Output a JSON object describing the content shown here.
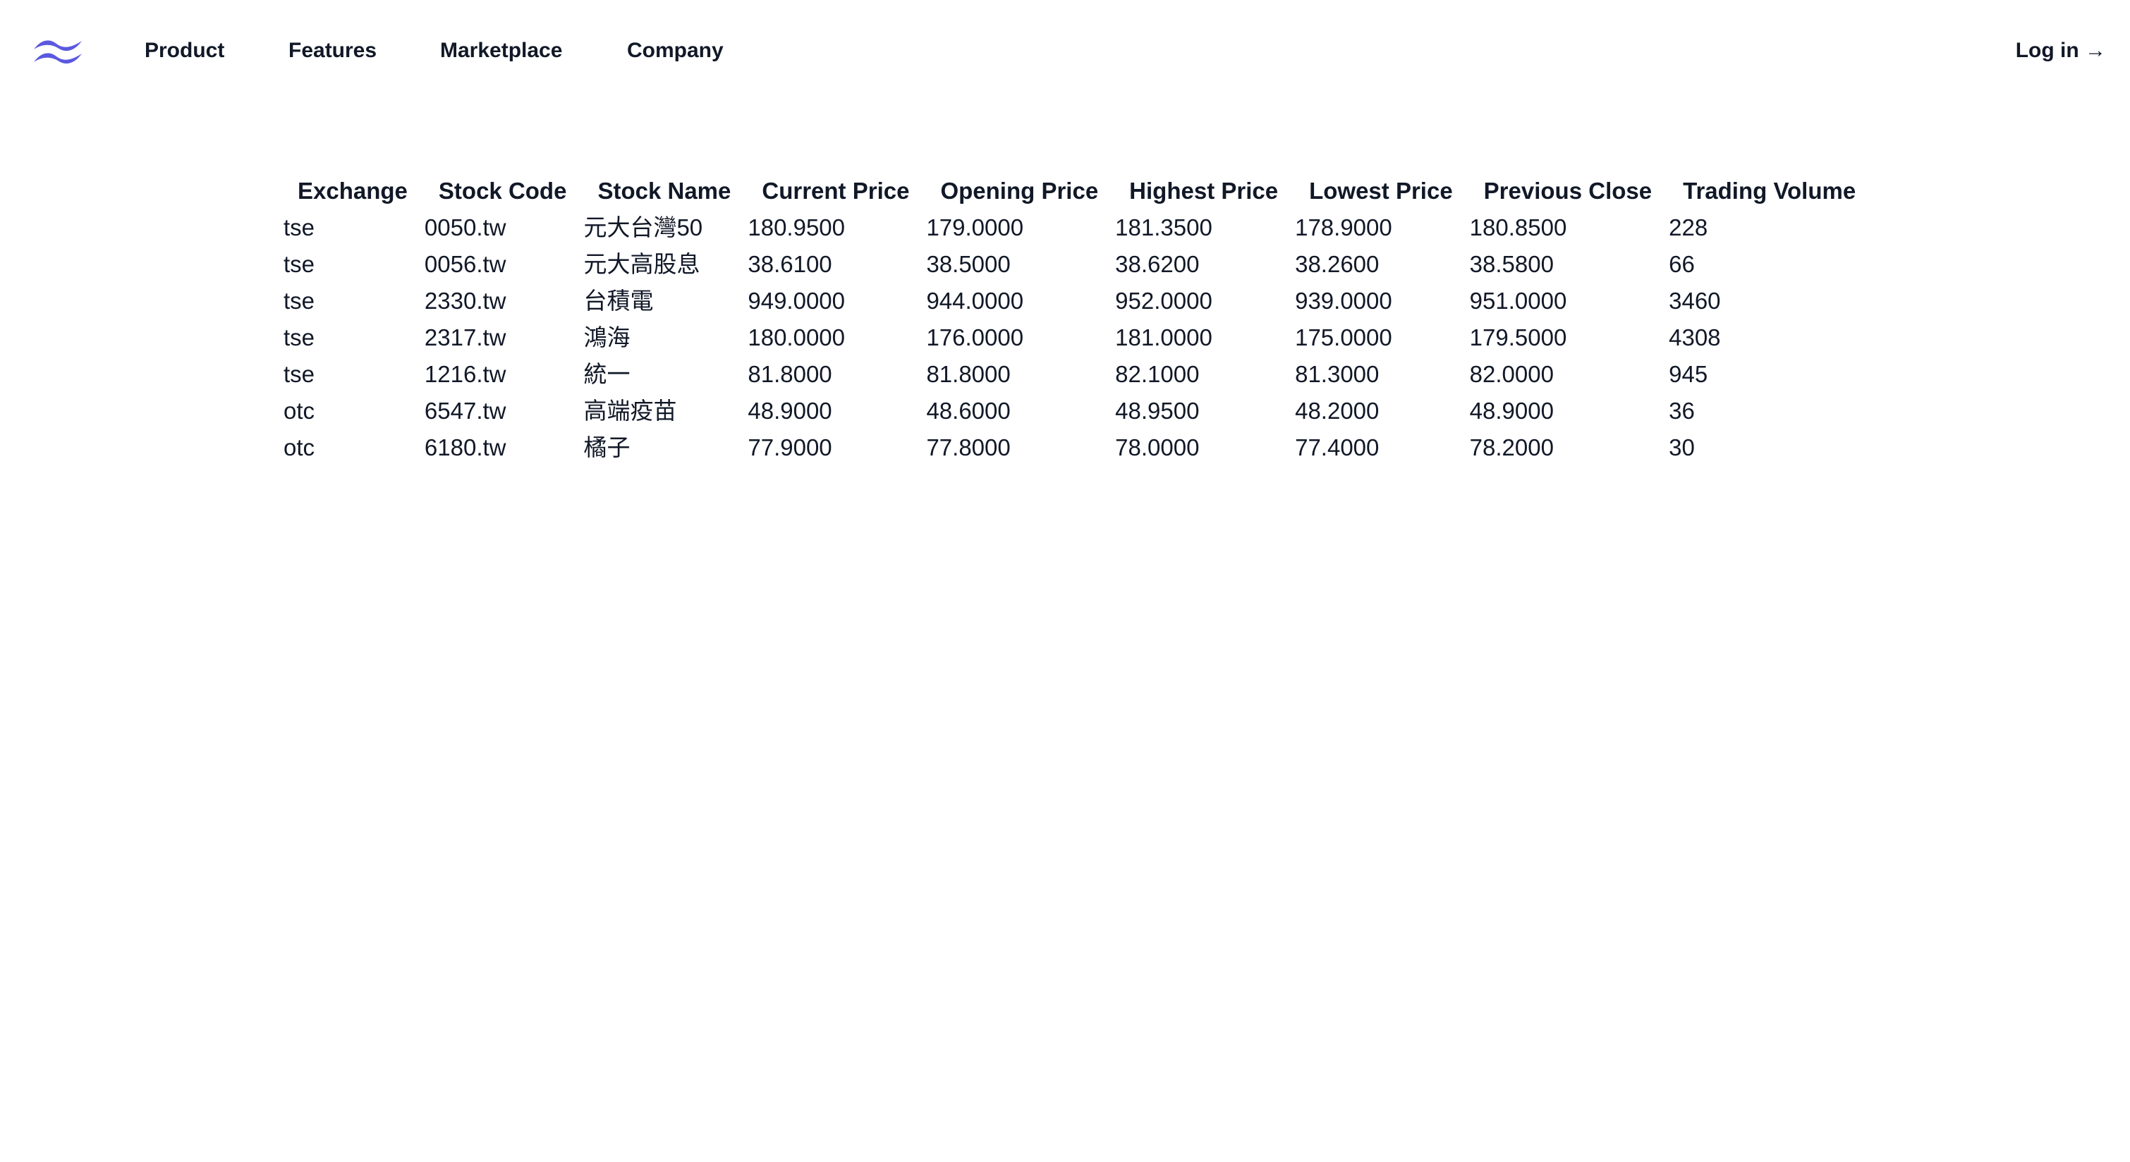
{
  "header": {
    "logo_icon": "wave-logo-icon",
    "brand_color": "#5b58e0",
    "nav": [
      {
        "label": "Product"
      },
      {
        "label": "Features"
      },
      {
        "label": "Marketplace"
      },
      {
        "label": "Company"
      }
    ],
    "login_label": "Log in →"
  },
  "table": {
    "columns": [
      "Exchange",
      "Stock Code",
      "Stock Name",
      "Current Price",
      "Opening Price",
      "Highest Price",
      "Lowest Price",
      "Previous Close",
      "Trading Volume"
    ],
    "rows": [
      [
        "tse",
        "0050.tw",
        "元大台灣50",
        "180.9500",
        "179.0000",
        "181.3500",
        "178.9000",
        "180.8500",
        "228"
      ],
      [
        "tse",
        "0056.tw",
        "元大高股息",
        "38.6100",
        "38.5000",
        "38.6200",
        "38.2600",
        "38.5800",
        "66"
      ],
      [
        "tse",
        "2330.tw",
        "台積電",
        "949.0000",
        "944.0000",
        "952.0000",
        "939.0000",
        "951.0000",
        "3460"
      ],
      [
        "tse",
        "2317.tw",
        "鴻海",
        "180.0000",
        "176.0000",
        "181.0000",
        "175.0000",
        "179.5000",
        "4308"
      ],
      [
        "tse",
        "1216.tw",
        "統一",
        "81.8000",
        "81.8000",
        "82.1000",
        "81.3000",
        "82.0000",
        "945"
      ],
      [
        "otc",
        "6547.tw",
        "高端疫苗",
        "48.9000",
        "48.6000",
        "48.9500",
        "48.2000",
        "48.9000",
        "36"
      ],
      [
        "otc",
        "6180.tw",
        "橘子",
        "77.9000",
        "77.8000",
        "78.0000",
        "77.4000",
        "78.2000",
        "30"
      ]
    ]
  }
}
